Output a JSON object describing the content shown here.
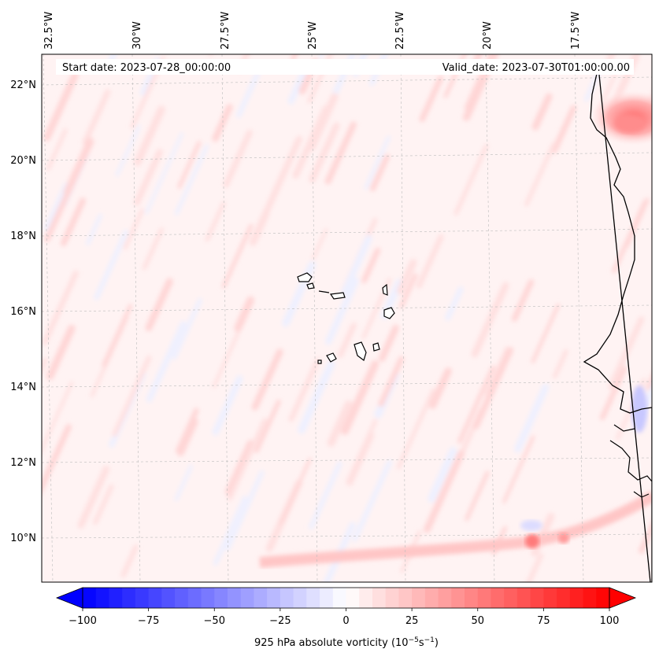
{
  "map": {
    "start_date_label": "Start date: 2023-07-28_00:00:00",
    "valid_date_label": "Valid_date: 2023-07-30T01:00:00.00",
    "lon_ticks": [
      "32.5°W",
      "30°W",
      "27.5°W",
      "25°W",
      "22.5°W",
      "20°W",
      "17.5°W"
    ],
    "lat_ticks": [
      "22°N",
      "20°N",
      "18°N",
      "16°N",
      "14°N",
      "12°N",
      "10°N"
    ],
    "extent": {
      "lon_min": -32.7,
      "lon_max": -15.5,
      "lat_min": 8.9,
      "lat_max": 22.8
    },
    "field": "925 hPa absolute vorticity",
    "colors": {
      "negative": "#0000ff",
      "neutral": "#ffffff",
      "positive": "#ff0000",
      "coast": "#000000",
      "grid": "#b0b0b0"
    }
  },
  "colorbar": {
    "ticks": [
      "−100",
      "−75",
      "−50",
      "−25",
      "0",
      "25",
      "50",
      "75",
      "100"
    ],
    "vmin": -100,
    "vmax": 100,
    "step": 5,
    "label_prefix": "925 hPa absolute vorticity (10",
    "label_exp1": "−5",
    "label_mid": "s",
    "label_exp2": "−1",
    "label_suffix": ")"
  }
}
